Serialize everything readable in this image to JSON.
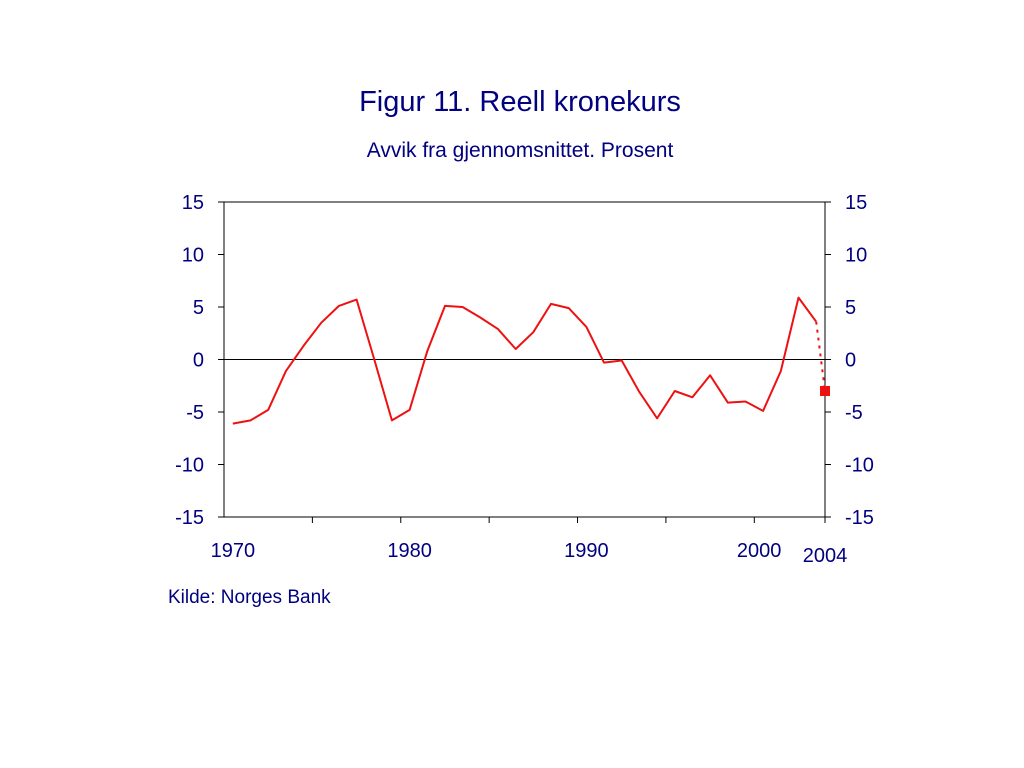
{
  "title": "Figur 11. Reell kronekurs",
  "subtitle": "Avvik fra gjennomsnittet. Prosent",
  "source": "Kilde: Norges Bank",
  "chart_data": {
    "type": "line",
    "title": "Figur 11. Reell kronekurs",
    "subtitle": "Avvik fra gjennomsnittet. Prosent",
    "xlabel": "",
    "ylabel": "",
    "xlim": [
      1970,
      2004
    ],
    "ylim": [
      -15,
      15
    ],
    "yticks": [
      15,
      10,
      5,
      0,
      -5,
      -10,
      -15
    ],
    "xticklabels": [
      "1970",
      "1980",
      "1990",
      "2000",
      "2004"
    ],
    "grid": false,
    "zero_line": true,
    "colors": {
      "line": "#ee1111",
      "text": "#000080",
      "axis": "#000000"
    },
    "series": [
      {
        "style": "solid",
        "x": [
          1970.5,
          1971.5,
          1972.5,
          1973.5,
          1974.5,
          1975.5,
          1976.5,
          1977.5,
          1978.5,
          1979.5,
          1980.5,
          1981.5,
          1982.5,
          1983.5,
          1984.5,
          1985.5,
          1986.5,
          1987.5,
          1988.5,
          1989.5,
          1990.5,
          1991.5,
          1992.5,
          1993.5,
          1994.5,
          1995.5,
          1996.5,
          1997.5,
          1998.5,
          1999.5,
          2000.5,
          2001.5,
          2002.5,
          2003.5
        ],
        "values": [
          -6.1,
          -5.8,
          -4.8,
          -1.1,
          1.3,
          3.5,
          5.1,
          5.7,
          0.0,
          -5.8,
          -4.8,
          0.8,
          5.1,
          5.0,
          4.0,
          2.9,
          1.0,
          2.6,
          5.3,
          4.9,
          3.1,
          -0.3,
          -0.1,
          -3.1,
          -5.6,
          -3.0,
          -3.6,
          -1.5,
          -4.1,
          -4.0,
          -4.9,
          -1.1,
          5.9,
          3.6
        ]
      },
      {
        "style": "dotted",
        "x": [
          2003.5,
          2004.0
        ],
        "values": [
          3.6,
          -3.0
        ]
      }
    ],
    "markers": [
      {
        "x": 2004.0,
        "value": -3.0,
        "shape": "square"
      }
    ]
  }
}
